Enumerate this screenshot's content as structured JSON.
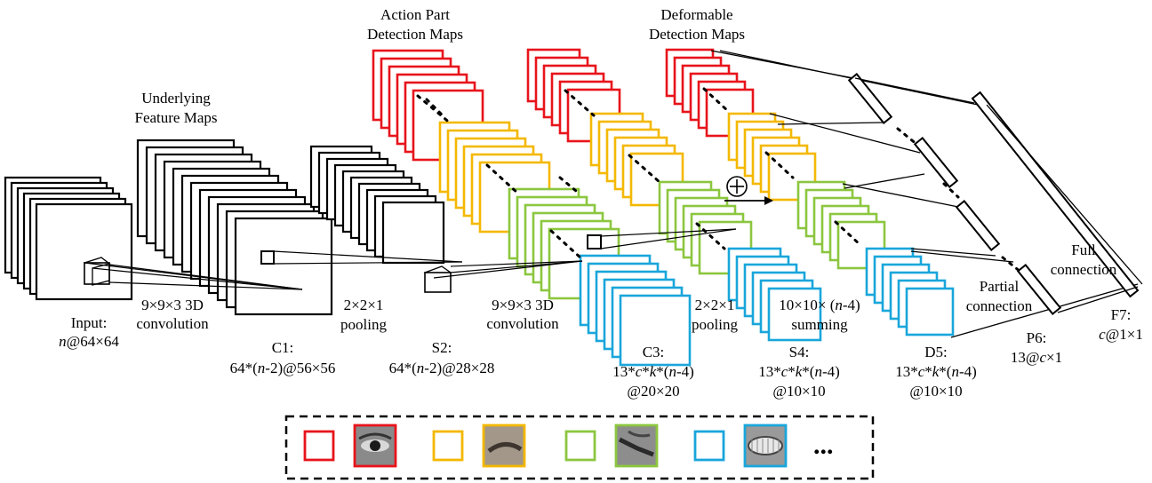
{
  "colors": {
    "red": "#e8141b",
    "yellow": "#f4b800",
    "green": "#8cc63f",
    "blue": "#19a6db",
    "black": "#000000"
  },
  "headings": {
    "underlying": [
      "Underlying",
      "Feature Maps"
    ],
    "action": [
      "Action Part",
      "Detection Maps"
    ],
    "deformable": [
      "Deformable",
      "Detection Maps"
    ]
  },
  "layers": {
    "input": [
      "Input:",
      "n@64×64"
    ],
    "c1": [
      "C1:",
      "64*(n-2)@56×56"
    ],
    "s2": [
      "S2:",
      "64*(n-2)@28×28"
    ],
    "c3": [
      "C3:",
      "13*c*k*(n-4)",
      "@20×20"
    ],
    "s4": [
      "S4:",
      "13*c*k*(n-4)",
      "@10×10"
    ],
    "d5": [
      "D5:",
      "13*c*k*(n-4)",
      "@10×10"
    ],
    "p6": [
      "P6:",
      "13@c×1"
    ],
    "f7": [
      "F7:",
      "c@1×1"
    ]
  },
  "operations": {
    "conv1": [
      "9×9×3 3D",
      "convolution"
    ],
    "pool1": [
      "2×2×1",
      "pooling"
    ],
    "conv2": [
      "9×9×3 3D",
      "convolution"
    ],
    "pool2": [
      "2×2×1",
      "pooling"
    ],
    "sum": [
      "10×10× (n-4)",
      "summing"
    ],
    "partial": [
      "Partial",
      "connection"
    ],
    "full": [
      "Full",
      "connection"
    ]
  },
  "symbols": {
    "plus": "⊕",
    "ellipsis": "..."
  },
  "legend": {
    "items": [
      {
        "color": "red",
        "part": "eye"
      },
      {
        "color": "yellow",
        "part": "eyebrow"
      },
      {
        "color": "green",
        "part": "eye-corner"
      },
      {
        "color": "blue",
        "part": "mouth"
      }
    ]
  }
}
